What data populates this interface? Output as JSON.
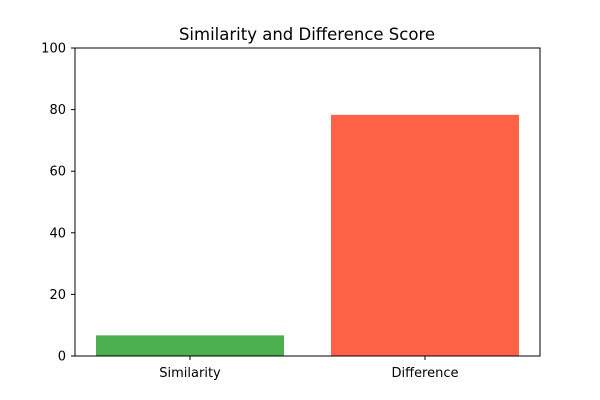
{
  "chart_data": {
    "type": "bar",
    "title": "Similarity and Difference Score",
    "xlabel": "",
    "ylabel": "",
    "categories": [
      "Similarity",
      "Difference"
    ],
    "values": [
      6.7,
      78.3
    ],
    "colors": [
      "#4caf50",
      "#ff6347"
    ],
    "ylim": [
      0,
      100
    ],
    "yticks": [
      "0",
      "20",
      "40",
      "60",
      "80",
      "100"
    ],
    "grid": false,
    "legend": "none"
  }
}
